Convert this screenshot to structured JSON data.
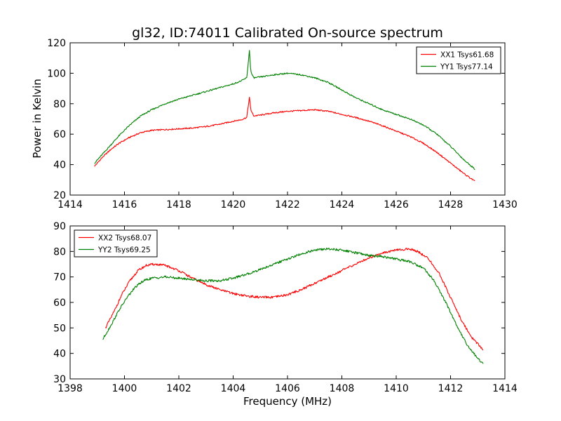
{
  "figure": {
    "title": "gl32, ID:74011 Calibrated On-source spectrum",
    "ylabel": "Power in Kelvin",
    "xlabel": "Frequency (MHz)"
  },
  "chart_data": [
    {
      "type": "line",
      "title": "gl32, ID:74011 Calibrated On-source spectrum",
      "xlabel": "",
      "ylabel": "Power in Kelvin",
      "xlim": [
        1414,
        1430
      ],
      "ylim": [
        20,
        120
      ],
      "xticks": [
        1414,
        1416,
        1418,
        1420,
        1422,
        1424,
        1426,
        1428,
        1430
      ],
      "yticks": [
        20,
        40,
        60,
        80,
        100,
        120
      ],
      "grid": false,
      "legend_position": "top-right",
      "series": [
        {
          "name": "XX1 Tsys61.68",
          "color": "#ff0000",
          "x": [
            1414.9,
            1415.2,
            1415.5,
            1415.8,
            1416.2,
            1416.6,
            1417.0,
            1417.5,
            1418.0,
            1418.5,
            1419.0,
            1419.5,
            1420.0,
            1420.3,
            1420.5,
            1420.55,
            1420.6,
            1420.65,
            1420.75,
            1421.0,
            1421.5,
            1422.0,
            1422.5,
            1423.0,
            1423.5,
            1424.0,
            1424.5,
            1425.0,
            1425.5,
            1426.0,
            1426.5,
            1427.0,
            1427.5,
            1428.0,
            1428.5,
            1428.9
          ],
          "y": [
            39,
            45,
            50,
            54,
            58,
            61,
            62.5,
            63,
            63.5,
            64,
            65,
            66.5,
            68.5,
            69.5,
            71,
            78,
            84,
            76,
            72,
            72.5,
            74,
            75,
            75.5,
            76,
            75,
            73,
            71,
            68.5,
            65.5,
            62,
            58.5,
            54,
            48,
            41,
            34,
            29
          ]
        },
        {
          "name": "YY1 Tsys77.14",
          "color": "#008000",
          "x": [
            1414.9,
            1415.2,
            1415.5,
            1415.8,
            1416.2,
            1416.6,
            1417.0,
            1417.5,
            1418.0,
            1418.5,
            1419.0,
            1419.5,
            1420.0,
            1420.3,
            1420.5,
            1420.55,
            1420.6,
            1420.65,
            1420.75,
            1421.0,
            1421.5,
            1422.0,
            1422.5,
            1423.0,
            1423.5,
            1424.0,
            1424.5,
            1425.0,
            1425.5,
            1426.0,
            1426.5,
            1427.0,
            1427.5,
            1428.0,
            1428.5,
            1428.9
          ],
          "y": [
            41,
            47,
            53,
            59,
            66,
            72,
            76,
            80,
            83,
            85.5,
            88,
            90.5,
            93,
            95,
            97,
            106,
            115,
            101,
            97,
            97.5,
            99,
            100,
            99,
            97,
            94,
            89,
            84,
            80,
            76,
            73,
            70,
            66,
            60,
            52,
            43,
            37
          ]
        }
      ]
    },
    {
      "type": "line",
      "title": "",
      "xlabel": "Frequency (MHz)",
      "ylabel": "",
      "xlim": [
        1398,
        1414
      ],
      "ylim": [
        30,
        90
      ],
      "xticks": [
        1398,
        1400,
        1402,
        1404,
        1406,
        1408,
        1410,
        1412,
        1414
      ],
      "yticks": [
        30,
        40,
        50,
        60,
        70,
        80,
        90
      ],
      "grid": false,
      "legend_position": "top-left",
      "series": [
        {
          "name": "XX2 Tsys68.07",
          "color": "#ff0000",
          "x": [
            1399.3,
            1399.6,
            1399.9,
            1400.2,
            1400.5,
            1400.8,
            1401.1,
            1401.5,
            1402.0,
            1402.5,
            1403.0,
            1403.5,
            1404.0,
            1404.5,
            1405.0,
            1405.5,
            1406.0,
            1406.5,
            1407.0,
            1407.5,
            1408.0,
            1408.5,
            1409.0,
            1409.5,
            1410.0,
            1410.5,
            1410.8,
            1411.2,
            1411.6,
            1412.0,
            1412.4,
            1412.8,
            1413.2
          ],
          "y": [
            50,
            56,
            63,
            68.5,
            72.5,
            74.5,
            75,
            74.5,
            72.5,
            69.5,
            67,
            65,
            63.5,
            62.5,
            62,
            62,
            63,
            65,
            67.5,
            70,
            72.5,
            75,
            77.5,
            79.5,
            80.5,
            81,
            80,
            77,
            71,
            62,
            53,
            46,
            41.5
          ]
        },
        {
          "name": "YY2 Tsys69.25",
          "color": "#008000",
          "x": [
            1399.2,
            1399.5,
            1399.8,
            1400.1,
            1400.4,
            1400.7,
            1401.0,
            1401.5,
            1402.0,
            1402.5,
            1403.0,
            1403.5,
            1404.0,
            1404.5,
            1405.0,
            1405.5,
            1406.0,
            1406.5,
            1407.0,
            1407.5,
            1408.0,
            1408.5,
            1409.0,
            1409.5,
            1410.0,
            1410.5,
            1411.0,
            1411.4,
            1411.8,
            1412.2,
            1412.6,
            1413.0,
            1413.2
          ],
          "y": [
            45.5,
            51,
            57,
            62,
            66,
            68.5,
            69.5,
            70,
            69.5,
            69,
            68.5,
            68.5,
            69.5,
            71,
            73,
            75,
            77,
            79,
            80.5,
            81,
            80.5,
            79.5,
            78.5,
            78,
            77,
            76,
            73.5,
            68.5,
            60.5,
            51.5,
            43.5,
            38,
            36
          ]
        }
      ]
    }
  ]
}
